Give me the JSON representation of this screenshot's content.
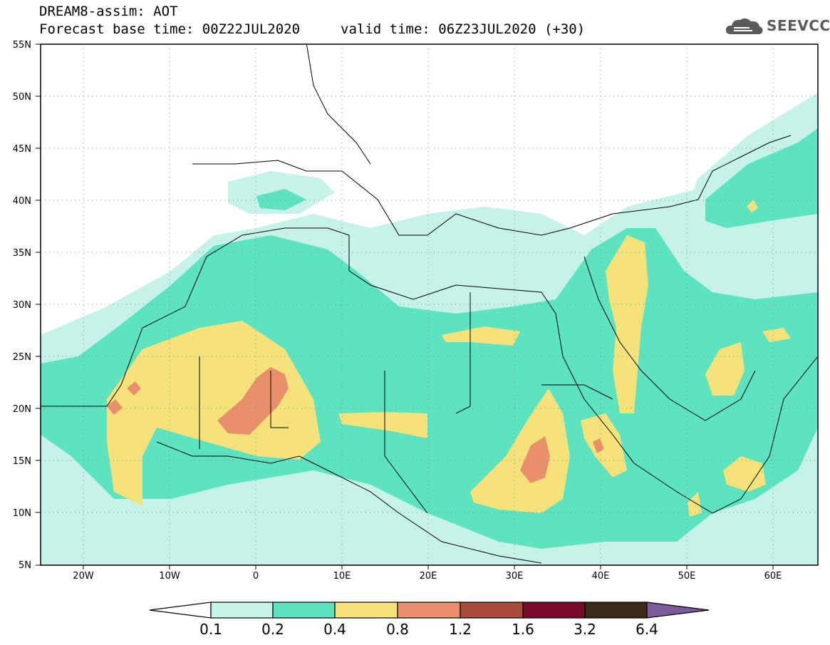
{
  "header": {
    "line1": "DREAM8-assim: AOT",
    "line2": "Forecast base time: 00Z22JUL2020",
    "valid": "valid time: 06Z23JUL2020 (+30)"
  },
  "logo": {
    "text": "SEEVCCC",
    "icon": "cloud-icon"
  },
  "map": {
    "lat_range": [
      5,
      55
    ],
    "lon_range": [
      -25,
      65
    ],
    "lat_labels": [
      "55N",
      "50N",
      "45N",
      "40N",
      "35N",
      "30N",
      "25N",
      "20N",
      "15N",
      "10N",
      "5N"
    ],
    "lon_labels": [
      "20W",
      "10W",
      "0",
      "10E",
      "20E",
      "30E",
      "40E",
      "50E",
      "60E"
    ],
    "grid": true
  },
  "colorbar": {
    "labels": [
      "0.1",
      "0.2",
      "0.4",
      "0.8",
      "1.2",
      "1.6",
      "3.2",
      "6.4"
    ],
    "colors": [
      "#ffffff",
      "#c6f2ea",
      "#5de3bf",
      "#f5e27a",
      "#e8906a",
      "#a84c3e",
      "#7a0a2a",
      "#3b2a18",
      "#7b5a9c"
    ]
  }
}
